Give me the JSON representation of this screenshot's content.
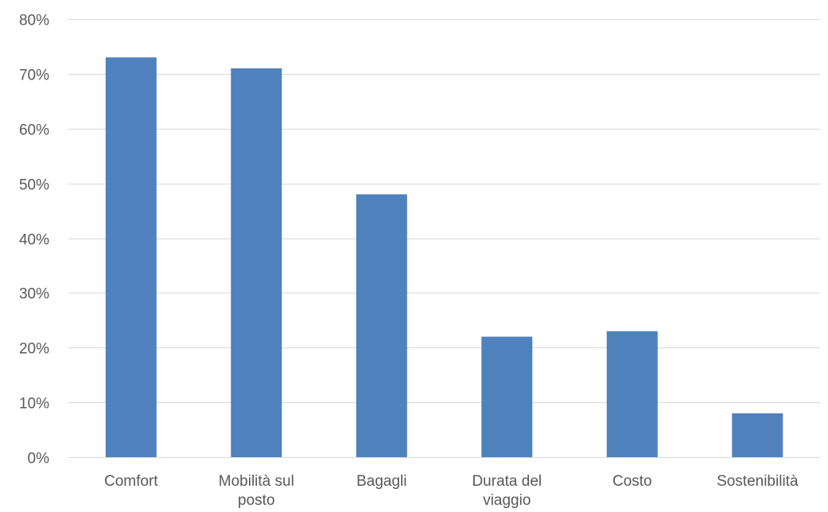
{
  "chart_data": {
    "type": "bar",
    "title": "",
    "xlabel": "",
    "ylabel": "",
    "categories": [
      [
        "Comfort"
      ],
      [
        "Mobilità sul",
        "posto"
      ],
      [
        "Bagagli"
      ],
      [
        "Durata del",
        "viaggio"
      ],
      [
        "Costo"
      ],
      [
        "Sostenibilità"
      ]
    ],
    "values": [
      0.73,
      0.71,
      0.48,
      0.22,
      0.23,
      0.08
    ],
    "ylim": [
      0,
      0.8
    ],
    "yticks": [
      {
        "value": 0.0,
        "label": "0%"
      },
      {
        "value": 0.1,
        "label": "10%"
      },
      {
        "value": 0.2,
        "label": "20%"
      },
      {
        "value": 0.3,
        "label": "30%"
      },
      {
        "value": 0.4,
        "label": "40%"
      },
      {
        "value": 0.5,
        "label": "50%"
      },
      {
        "value": 0.6,
        "label": "60%"
      },
      {
        "value": 0.7,
        "label": "70%"
      },
      {
        "value": 0.8,
        "label": "80%"
      }
    ],
    "grid": true,
    "legend": "none",
    "colors": {
      "bar": "#4f81bd",
      "grid": "#d9d9d9",
      "text": "#595959"
    }
  }
}
